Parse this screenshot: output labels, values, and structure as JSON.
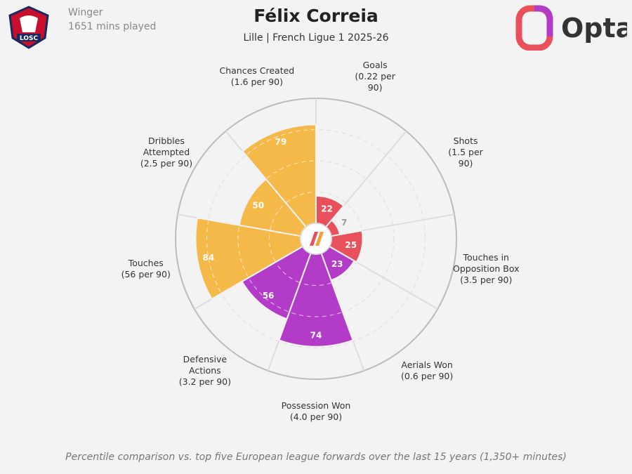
{
  "chart_data": {
    "type": "polar_bar",
    "title": "Félix Correia",
    "subtitle": "Lille | French Ligue 1 2025-26",
    "position": "Winger",
    "minutes": "1651 mins played",
    "club_badge": "LOSC",
    "brand": "Opta",
    "footnote": "Percentile comparison vs. top five European league forwards over the last 15 years (1,350+ minutes)",
    "categories": [
      "Goals",
      "Shots",
      "Touches in Opposition Box",
      "Aerials Won",
      "Possession Won",
      "Defensive Actions",
      "Touches",
      "Dribbles Attempted",
      "Chances Created"
    ],
    "stat_labels": [
      "(0.22 per 90)",
      "(1.5 per 90)",
      "(3.5 per 90)",
      "(0.6 per 90)",
      "(4.0 per 90)",
      "(3.2 per 90)",
      "(56 per 90)",
      "(2.5 per 90)",
      "(1.6 per 90)"
    ],
    "values": [
      22,
      7,
      25,
      23,
      74,
      56,
      84,
      50,
      79
    ],
    "colors": [
      "#e8505b",
      "#e8505b",
      "#e8505b",
      "#b23cc8",
      "#b23cc8",
      "#b23cc8",
      "#f5b94a",
      "#f5b94a",
      "#f5b94a"
    ],
    "rlim": [
      0,
      100
    ]
  }
}
